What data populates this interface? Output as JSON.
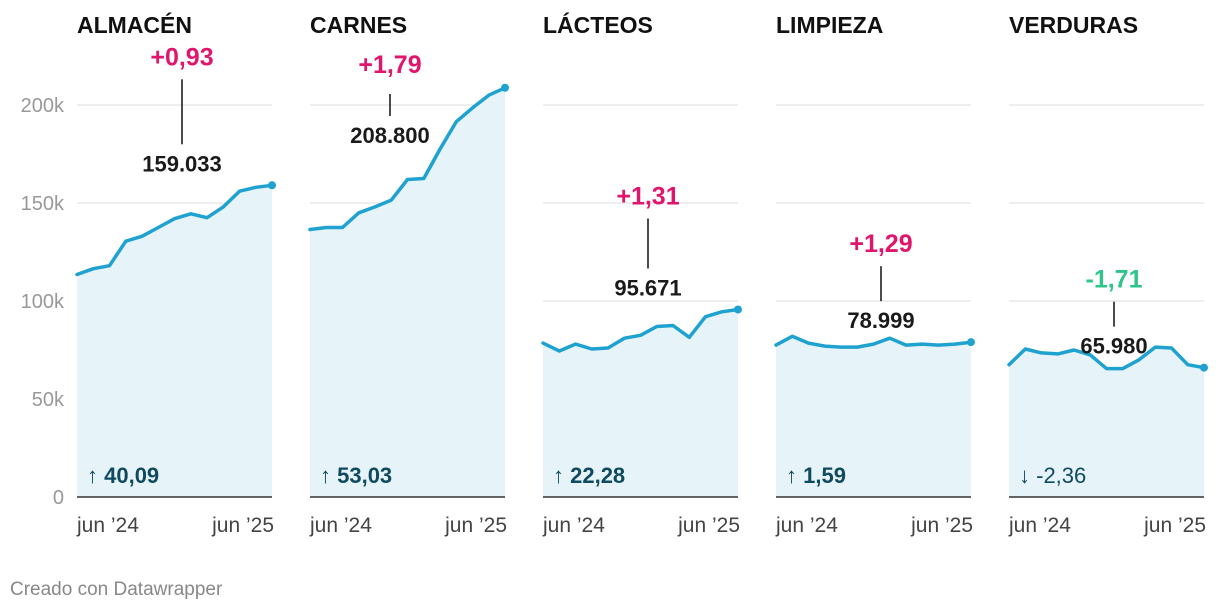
{
  "chart_data": {
    "type": "area",
    "ylim": [
      0,
      200000
    ],
    "y_ticks": [
      {
        "value": 0,
        "label": "0"
      },
      {
        "value": 50000,
        "label": "50k"
      },
      {
        "value": 100000,
        "label": "100k"
      },
      {
        "value": 150000,
        "label": "150k"
      },
      {
        "value": 200000,
        "label": "200k"
      }
    ],
    "x_ticks": [
      "jun ’24",
      "jun ’25"
    ],
    "colors": {
      "line": "#1fa2cf",
      "area": "#e6f3f9",
      "grid": "#dddddd",
      "positive": "#e0156b",
      "negative": "#2fc48a",
      "change": "#0f4a5e",
      "title": "#111111",
      "axis": "#999999"
    },
    "panels": [
      {
        "title": "ALMACÉN",
        "values": [
          113500,
          116500,
          118000,
          130500,
          133000,
          137500,
          142000,
          144500,
          142500,
          148000,
          156000,
          158000,
          159033
        ],
        "last_label": "159.033",
        "monthly_change": "+0,93",
        "monthly_sign": "positive",
        "total_change": "40,09",
        "total_arrow": "↑",
        "total_sign": "positive"
      },
      {
        "title": "CARNES",
        "values": [
          136500,
          137500,
          137500,
          145000,
          148000,
          151500,
          162000,
          162500,
          177500,
          191500,
          198500,
          205000,
          208800
        ],
        "last_label": "208.800",
        "monthly_change": "+1,79",
        "monthly_sign": "positive",
        "total_change": "53,03",
        "total_arrow": "↑",
        "total_sign": "positive"
      },
      {
        "title": "LÁCTEOS",
        "values": [
          78500,
          74500,
          78000,
          75500,
          76000,
          81000,
          82500,
          87000,
          87500,
          81500,
          92000,
          94500,
          95671
        ],
        "last_label": "95.671",
        "monthly_change": "+1,31",
        "monthly_sign": "positive",
        "total_change": "22,28",
        "total_arrow": "↑",
        "total_sign": "positive"
      },
      {
        "title": "LIMPIEZA",
        "values": [
          77500,
          82000,
          78500,
          77000,
          76500,
          76500,
          78000,
          81000,
          77500,
          78000,
          77500,
          78000,
          78999
        ],
        "last_label": "78.999",
        "monthly_change": "+1,29",
        "monthly_sign": "positive",
        "total_change": "1,59",
        "total_arrow": "↑",
        "total_sign": "positive"
      },
      {
        "title": "VERDURAS",
        "values": [
          67500,
          75500,
          73500,
          73000,
          75000,
          72500,
          65500,
          65500,
          70000,
          76500,
          76000,
          67500,
          65980
        ],
        "last_label": "65.980",
        "monthly_change": "-1,71",
        "monthly_sign": "negative",
        "total_change": "-2,36",
        "total_arrow": "↓",
        "total_sign": "negative"
      }
    ]
  },
  "footer": "Creado con Datawrapper"
}
